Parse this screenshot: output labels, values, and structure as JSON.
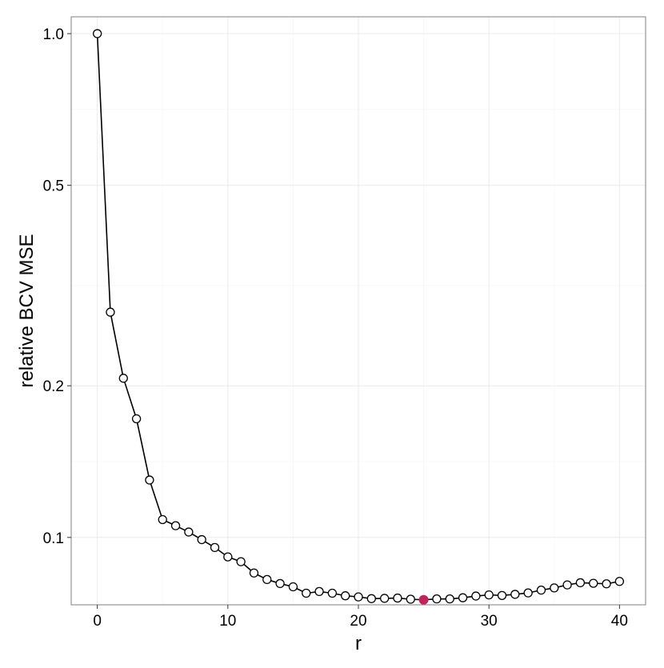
{
  "chart_data": {
    "type": "line",
    "title": "",
    "xlabel": "r",
    "ylabel": "relative BCV MSE",
    "x_scale": "linear",
    "y_scale": "log",
    "xlim": [
      -2,
      42
    ],
    "ylim": [
      0.0735,
      1.08
    ],
    "x_ticks": [
      0,
      10,
      20,
      30,
      40
    ],
    "x_tick_labels": [
      "0",
      "10",
      "20",
      "30",
      "40"
    ],
    "y_ticks": [
      0.1,
      0.2,
      0.5,
      1.0
    ],
    "y_tick_labels": [
      "0.1",
      "0.2",
      "0.5",
      "1.0"
    ],
    "grid": true,
    "legend": "none",
    "series": [
      {
        "x": [
          0,
          1,
          2,
          3,
          4,
          5,
          6,
          7,
          8,
          9,
          10,
          11,
          12,
          13,
          14,
          15,
          16,
          17,
          18,
          19,
          20,
          21,
          22,
          23,
          24,
          25,
          26,
          27,
          28,
          29,
          30,
          31,
          32,
          33,
          34,
          35,
          36,
          37,
          38,
          39,
          40
        ],
        "y": [
          1.0,
          0.28,
          0.207,
          0.172,
          0.13,
          0.1085,
          0.1055,
          0.1025,
          0.099,
          0.0955,
          0.0915,
          0.0895,
          0.085,
          0.0825,
          0.081,
          0.0798,
          0.0775,
          0.0781,
          0.0775,
          0.0766,
          0.0762,
          0.0756,
          0.0757,
          0.0758,
          0.0754,
          0.0752,
          0.0755,
          0.0755,
          0.0759,
          0.0765,
          0.0769,
          0.0767,
          0.0771,
          0.0776,
          0.0786,
          0.0794,
          0.0805,
          0.0813,
          0.0811,
          0.0809,
          0.0818
        ]
      }
    ],
    "highlight": {
      "x": 25,
      "y": 0.0752,
      "color": "#c0245e"
    },
    "colors": {
      "line": "#000000",
      "point_stroke": "#000000",
      "point_fill": "#ffffff",
      "grid": "#ebebeb",
      "panel_border": "#7f7f7f",
      "text": "#000000"
    }
  }
}
